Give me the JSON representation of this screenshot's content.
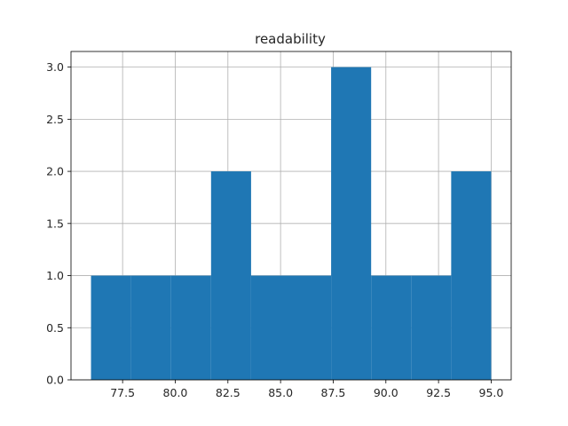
{
  "chart_data": {
    "type": "bar",
    "title": "readability",
    "xlabel": "",
    "ylabel": "",
    "bins": [
      {
        "start": 76.0,
        "end": 77.9,
        "count": 1
      },
      {
        "start": 77.9,
        "end": 79.8,
        "count": 1
      },
      {
        "start": 79.8,
        "end": 81.7,
        "count": 1
      },
      {
        "start": 81.7,
        "end": 83.6,
        "count": 2
      },
      {
        "start": 83.6,
        "end": 85.5,
        "count": 1
      },
      {
        "start": 85.5,
        "end": 87.4,
        "count": 1
      },
      {
        "start": 87.4,
        "end": 89.3,
        "count": 3
      },
      {
        "start": 89.3,
        "end": 91.2,
        "count": 1
      },
      {
        "start": 91.2,
        "end": 93.1,
        "count": 1
      },
      {
        "start": 93.1,
        "end": 95.0,
        "count": 2
      }
    ],
    "xlim": [
      75.05,
      95.95
    ],
    "ylim": [
      0,
      3.15
    ],
    "x_ticks": [
      "77.5",
      "80.0",
      "82.5",
      "85.0",
      "87.5",
      "90.0",
      "92.5",
      "95.0"
    ],
    "y_ticks": [
      "0.0",
      "0.5",
      "1.0",
      "1.5",
      "2.0",
      "2.5",
      "3.0"
    ],
    "grid": true,
    "bar_color": "#1f77b4",
    "grid_color": "#b0b0b0"
  }
}
